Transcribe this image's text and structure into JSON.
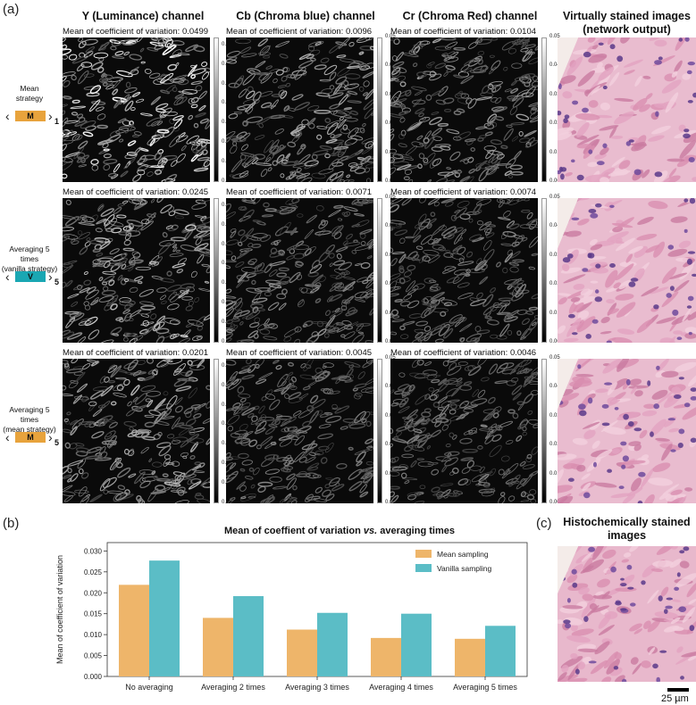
{
  "panel_labels": {
    "a": "(a)",
    "b": "(b)",
    "c": "(c)"
  },
  "columns": {
    "y": "Y (Luminance) channel",
    "cb": "Cb (Chroma blue) channel",
    "cr": "Cr (Chroma Red) channel",
    "virtual_line1": "Virtually stained images",
    "virtual_line2": "(network output)"
  },
  "rows": [
    {
      "label_lines": [
        "Mean",
        "strategy"
      ],
      "icon_letter": "M",
      "icon_color": "#e8a33c",
      "subscript": "1",
      "cv": [
        "Mean of coefficient of variation: 0.0499",
        "Mean of coefficient of variation: 0.0096",
        "Mean of coefficient of variation: 0.0104"
      ]
    },
    {
      "label_lines": [
        "Averaging 5 times",
        "(vanilla strategy)"
      ],
      "icon_letter": "V",
      "icon_color": "#1aa7b3",
      "subscript": "5",
      "cv": [
        "Mean of coefficient of variation: 0.0245",
        "Mean of coefficient of variation: 0.0071",
        "Mean of coefficient of variation: 0.0074"
      ]
    },
    {
      "label_lines": [
        "Averaging 5 times",
        "(mean strategy)"
      ],
      "icon_letter": "M",
      "icon_color": "#e8a33c",
      "subscript": "5",
      "cv": [
        "Mean of coefficient of variation: 0.0201",
        "Mean of coefficient of variation: 0.0045",
        "Mean of coefficient of variation: 0.0046"
      ]
    }
  ],
  "colorbar_ticks": {
    "y": [
      "0.175",
      "0.150",
      "0.125",
      "0.100",
      "0.075",
      "0.050",
      "0.025",
      "0.000"
    ],
    "cbcr": [
      "0.05",
      "0.04",
      "0.03",
      "0.02",
      "0.01",
      "0.00"
    ]
  },
  "histo_title_line1": "Histochemically stained",
  "histo_title_line2": "images",
  "scale_bar_label": "25 µm",
  "chart_data": {
    "type": "bar",
    "title": "Mean of coeffient of variation vs. averaging times",
    "title_main": "Mean of coeffient of variation ",
    "title_italic": "vs.",
    "title_tail": " averaging times",
    "xlabel": "",
    "ylabel": "Mean of coefficient of variation",
    "categories": [
      "No averaging",
      "Averaging 2 times",
      "Averaging 3 times",
      "Averaging 4 times",
      "Averaging 5 times"
    ],
    "series": [
      {
        "name": "Mean sampling",
        "color": "#eeb56a",
        "values": [
          0.0219,
          0.014,
          0.0112,
          0.0092,
          0.009
        ]
      },
      {
        "name": "Vanilla sampling",
        "color": "#5bbdc6",
        "values": [
          0.0277,
          0.0192,
          0.0152,
          0.015,
          0.0121
        ]
      }
    ],
    "ylim": [
      0,
      0.032
    ],
    "yticks": [
      "0.000",
      "0.005",
      "0.010",
      "0.015",
      "0.020",
      "0.025",
      "0.030"
    ],
    "legend_position": "top-right"
  }
}
